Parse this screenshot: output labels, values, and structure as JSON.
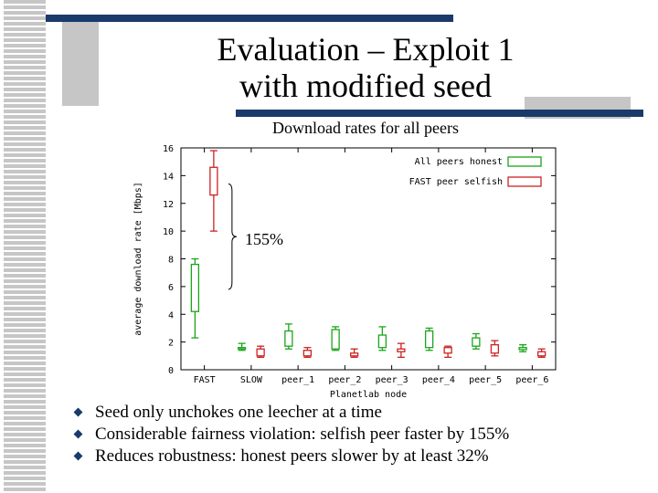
{
  "slide": {
    "title_lines": [
      "Evaluation – Exploit 1",
      "with modified seed"
    ],
    "subtitle": "Download rates for all peers",
    "annotation": "155%",
    "bullets": [
      "Seed only unchokes one leecher at a time",
      "Considerable fairness violation: selfish peer faster by 155%",
      "Reduces robustness: honest peers slower by at least 32%"
    ],
    "colors": {
      "accent_bar": "#1a3a6b",
      "accent_block": "#c6c6c6"
    }
  },
  "chart_data": {
    "type": "box",
    "xlabel": "Planetlab node",
    "ylabel": "average download rate [Mbps]",
    "categories": [
      "FAST",
      "SLOW",
      "peer_1",
      "peer_2",
      "peer_3",
      "peer_4",
      "peer_5",
      "peer_6"
    ],
    "ylim": [
      0,
      16
    ],
    "yticks": [
      0,
      2,
      4,
      6,
      8,
      10,
      12,
      14,
      16
    ],
    "legend_position": "top-right",
    "series": [
      {
        "name": "All peers honest",
        "color": "#1aa51a",
        "boxes": [
          {
            "category": "FAST",
            "min": 2.3,
            "q1": 4.2,
            "q3": 7.6,
            "max": 8.0
          },
          {
            "category": "SLOW",
            "min": 1.4,
            "q1": 1.5,
            "q3": 1.6,
            "max": 1.9
          },
          {
            "category": "peer_1",
            "min": 1.5,
            "q1": 1.7,
            "q3": 2.8,
            "max": 3.3
          },
          {
            "category": "peer_2",
            "min": 1.4,
            "q1": 1.5,
            "q3": 2.9,
            "max": 3.1
          },
          {
            "category": "peer_3",
            "min": 1.4,
            "q1": 1.6,
            "q3": 2.5,
            "max": 3.1
          },
          {
            "category": "peer_4",
            "min": 1.4,
            "q1": 1.6,
            "q3": 2.8,
            "max": 3.0
          },
          {
            "category": "peer_5",
            "min": 1.5,
            "q1": 1.7,
            "q3": 2.3,
            "max": 2.6
          },
          {
            "category": "peer_6",
            "min": 1.3,
            "q1": 1.45,
            "q3": 1.6,
            "max": 1.8
          }
        ]
      },
      {
        "name": "FAST peer selfish",
        "color": "#cc2222",
        "boxes": [
          {
            "category": "FAST",
            "min": 10.0,
            "q1": 12.6,
            "q3": 14.6,
            "max": 15.8
          },
          {
            "category": "SLOW",
            "min": 0.9,
            "q1": 1.0,
            "q3": 1.5,
            "max": 1.7
          },
          {
            "category": "peer_1",
            "min": 0.9,
            "q1": 1.0,
            "q3": 1.4,
            "max": 1.6
          },
          {
            "category": "peer_2",
            "min": 0.9,
            "q1": 1.0,
            "q3": 1.2,
            "max": 1.5
          },
          {
            "category": "peer_3",
            "min": 0.9,
            "q1": 1.3,
            "q3": 1.5,
            "max": 1.9
          },
          {
            "category": "peer_4",
            "min": 0.9,
            "q1": 1.2,
            "q3": 1.6,
            "max": 1.7
          },
          {
            "category": "peer_5",
            "min": 1.0,
            "q1": 1.2,
            "q3": 1.8,
            "max": 2.1
          },
          {
            "category": "peer_6",
            "min": 0.9,
            "q1": 1.0,
            "q3": 1.3,
            "max": 1.5
          }
        ]
      }
    ]
  }
}
